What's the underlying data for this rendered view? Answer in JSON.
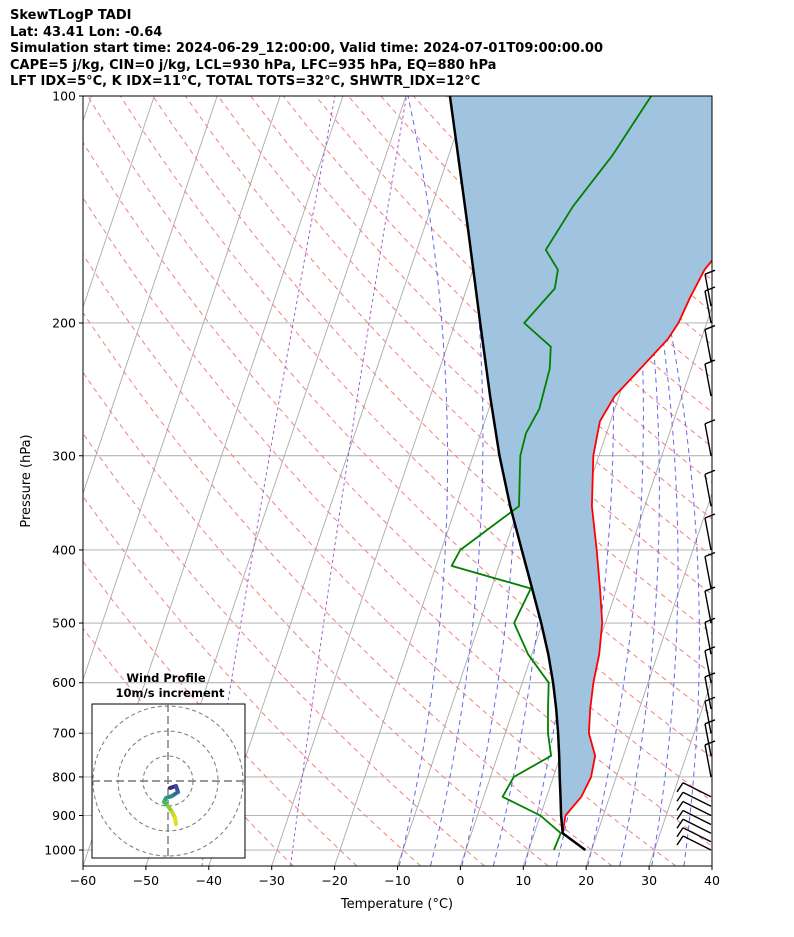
{
  "header": {
    "line1": "SkewTLogP TADI",
    "line2": "Lat: 43.41   Lon: -0.64",
    "line3": "Simulation start time: 2024-06-29_12:00:00, Valid time: 2024-07-01T09:00:00.00",
    "line4": "CAPE=5 j/kg, CIN=0 j/kg, LCL=930 hPa, LFC=935 hPa, EQ=880 hPa",
    "line5": "LFT IDX=5°C, K IDX=11°C, TOTAL TOTS=32°C, SHWTR_IDX=12°C"
  },
  "colors": {
    "temperature": "#ff0000",
    "dewpoint": "#008000",
    "parcel": "#000000",
    "cape_fill": "#a0c4e0",
    "dry_adiabat": "#f08080",
    "moist_adiabat": "#6666ee",
    "mixing_ratio": "#9a4fc8",
    "isotherm": "#aaaaaa",
    "isobar": "#aaaaaa"
  },
  "chart_data": {
    "type": "skewt",
    "xlabel": "Temperature (°C)",
    "ylabel": "Pressure (hPa)",
    "xlim": [
      -60,
      40
    ],
    "ylim": [
      1050,
      100
    ],
    "x_ticks": [
      -60,
      -50,
      -40,
      -30,
      -20,
      -10,
      0,
      10,
      20,
      30,
      40
    ],
    "y_ticks": [
      100,
      200,
      300,
      400,
      500,
      600,
      700,
      800,
      900,
      1000
    ],
    "grid": true,
    "series": [
      {
        "key": "temperature",
        "points": [
          {
            "p": 1000,
            "x": 19.0
          },
          {
            "p": 950,
            "x": 14.5
          },
          {
            "p": 900,
            "x": 14.0
          },
          {
            "p": 850,
            "x": 15.5
          },
          {
            "p": 800,
            "x": 16.0
          },
          {
            "p": 750,
            "x": 15.5
          },
          {
            "p": 700,
            "x": 13.3
          },
          {
            "p": 650,
            "x": 12.2
          },
          {
            "p": 600,
            "x": 11.3
          },
          {
            "p": 550,
            "x": 10.7
          },
          {
            "p": 500,
            "x": 9.5
          },
          {
            "p": 450,
            "x": 7.3
          },
          {
            "p": 400,
            "x": 4.7
          },
          {
            "p": 350,
            "x": 1.6
          },
          {
            "p": 300,
            "x": -0.9
          },
          {
            "p": 270,
            "x": -1.7
          },
          {
            "p": 250,
            "x": -0.7
          },
          {
            "p": 230,
            "x": 1.9
          },
          {
            "p": 210,
            "x": 4.7
          },
          {
            "p": 200,
            "x": 5.5
          },
          {
            "p": 185,
            "x": 6.0
          },
          {
            "p": 170,
            "x": 6.8
          },
          {
            "p": 160,
            "x": 8.3
          },
          {
            "p": 150,
            "x": 10.5
          },
          {
            "p": 140,
            "x": 12.2
          },
          {
            "p": 130,
            "x": 13.6
          },
          {
            "p": 120,
            "x": 14.3
          },
          {
            "p": 110,
            "x": 15.2
          },
          {
            "p": 100,
            "x": 16.2
          }
        ]
      },
      {
        "key": "dewpoint",
        "points": [
          {
            "p": 1000,
            "x": 14.0
          },
          {
            "p": 950,
            "x": 14.2
          },
          {
            "p": 900,
            "x": 10.0
          },
          {
            "p": 850,
            "x": 3.0
          },
          {
            "p": 800,
            "x": 3.7
          },
          {
            "p": 750,
            "x": 8.5
          },
          {
            "p": 700,
            "x": 6.8
          },
          {
            "p": 650,
            "x": 5.5
          },
          {
            "p": 600,
            "x": 4.2
          },
          {
            "p": 550,
            "x": -0.6
          },
          {
            "p": 500,
            "x": -4.5
          },
          {
            "p": 450,
            "x": -3.7
          },
          {
            "p": 420,
            "x": -17.5
          },
          {
            "p": 400,
            "x": -17.0
          },
          {
            "p": 350,
            "x": -10.0
          },
          {
            "p": 300,
            "x": -12.5
          },
          {
            "p": 280,
            "x": -12.8
          },
          {
            "p": 260,
            "x": -12.0
          },
          {
            "p": 230,
            "x": -12.5
          },
          {
            "p": 215,
            "x": -13.5
          },
          {
            "p": 200,
            "x": -19.0
          },
          {
            "p": 180,
            "x": -16.0
          },
          {
            "p": 170,
            "x": -16.5
          },
          {
            "p": 160,
            "x": -19.5
          },
          {
            "p": 140,
            "x": -17.5
          },
          {
            "p": 120,
            "x": -14.0
          },
          {
            "p": 100,
            "x": -11.0
          }
        ]
      },
      {
        "key": "parcel",
        "points": [
          {
            "p": 1000,
            "x": 19.0
          },
          {
            "p": 950,
            "x": 14.5
          },
          {
            "p": 900,
            "x": 13.3
          },
          {
            "p": 850,
            "x": 12.2
          },
          {
            "p": 800,
            "x": 11.0
          },
          {
            "p": 750,
            "x": 9.8
          },
          {
            "p": 700,
            "x": 8.4
          },
          {
            "p": 650,
            "x": 6.8
          },
          {
            "p": 600,
            "x": 4.9
          },
          {
            "p": 550,
            "x": 2.6
          },
          {
            "p": 500,
            "x": -0.2
          },
          {
            "p": 450,
            "x": -3.5
          },
          {
            "p": 400,
            "x": -7.2
          },
          {
            "p": 350,
            "x": -11.4
          },
          {
            "p": 300,
            "x": -15.8
          },
          {
            "p": 250,
            "x": -20.5
          },
          {
            "p": 200,
            "x": -26.0
          },
          {
            "p": 150,
            "x": -33.0
          },
          {
            "p": 120,
            "x": -38.5
          },
          {
            "p": 100,
            "x": -43.0
          }
        ]
      }
    ],
    "wind_barbs_hPa": [
      1000,
      975,
      950,
      925,
      900,
      875,
      850,
      800,
      750,
      700,
      650,
      600,
      550,
      500,
      450,
      400,
      350,
      300,
      250,
      225,
      200,
      190
    ],
    "inset": {
      "title": "Wind Profile",
      "subtitle": "10m/s increment"
    }
  }
}
